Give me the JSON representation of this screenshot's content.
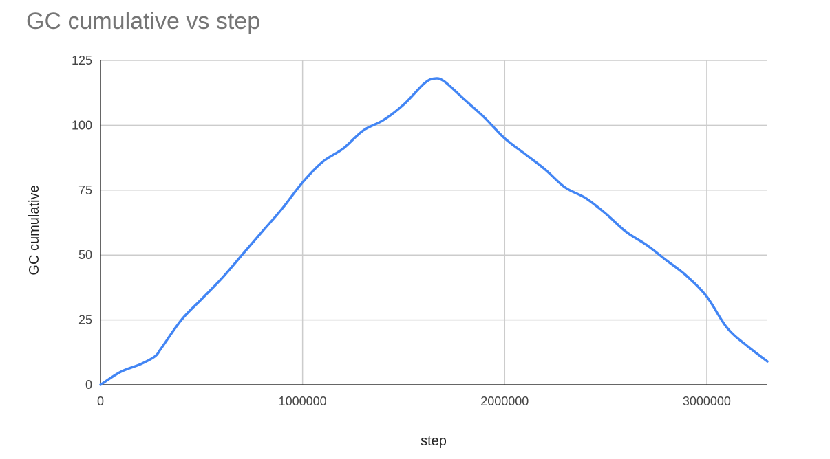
{
  "chart_data": {
    "type": "line",
    "title": "GC cumulative vs step",
    "xlabel": "step",
    "ylabel": "GC cumulative",
    "xlim": [
      0,
      3300000
    ],
    "ylim": [
      0,
      125
    ],
    "x_ticks": [
      0,
      1000000,
      2000000,
      3000000
    ],
    "y_ticks": [
      0,
      25,
      50,
      75,
      100,
      125
    ],
    "x_tick_labels": [
      "0",
      "1000000",
      "2000000",
      "3000000"
    ],
    "y_tick_labels": [
      "0",
      "25",
      "50",
      "75",
      "100",
      "125"
    ],
    "grid": true,
    "legend": "none",
    "series": [
      {
        "color": "#4285f4",
        "points": [
          [
            0,
            0
          ],
          [
            100000,
            5
          ],
          [
            200000,
            8
          ],
          [
            270000,
            11
          ],
          [
            300000,
            14
          ],
          [
            400000,
            25
          ],
          [
            500000,
            33
          ],
          [
            600000,
            41
          ],
          [
            700000,
            50
          ],
          [
            800000,
            59
          ],
          [
            900000,
            68
          ],
          [
            1000000,
            78
          ],
          [
            1100000,
            86
          ],
          [
            1200000,
            91
          ],
          [
            1300000,
            98
          ],
          [
            1400000,
            102
          ],
          [
            1500000,
            108
          ],
          [
            1600000,
            116
          ],
          [
            1650000,
            118
          ],
          [
            1700000,
            117
          ],
          [
            1800000,
            110
          ],
          [
            1900000,
            103
          ],
          [
            2000000,
            95
          ],
          [
            2100000,
            89
          ],
          [
            2200000,
            83
          ],
          [
            2300000,
            76
          ],
          [
            2400000,
            72
          ],
          [
            2500000,
            66
          ],
          [
            2600000,
            59
          ],
          [
            2700000,
            54
          ],
          [
            2800000,
            48
          ],
          [
            2900000,
            42
          ],
          [
            3000000,
            34
          ],
          [
            3100000,
            22
          ],
          [
            3200000,
            15
          ],
          [
            3300000,
            9
          ]
        ]
      }
    ]
  }
}
